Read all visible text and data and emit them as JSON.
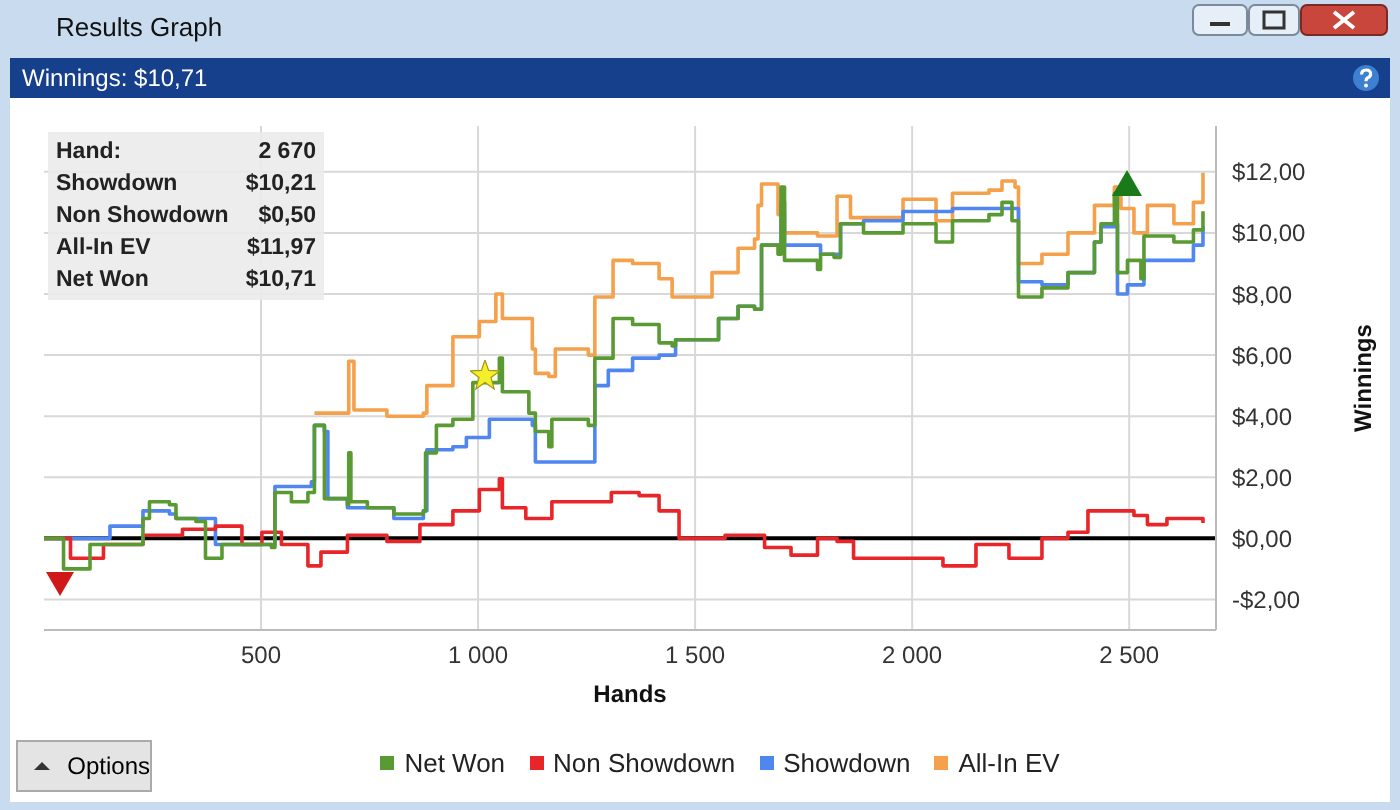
{
  "chart_data": {
    "type": "step",
    "title": "Results Graph",
    "subtitle": "Winnings: $10,71",
    "xlabel": "Hands",
    "ylabel": "Winnings",
    "annotations": [
      "Hand:",
      "2 670",
      "Showdown",
      "$10,21",
      "Non Showdown",
      "$0,50",
      "All-In EV",
      "$11,97",
      "Net Won",
      "$10,71",
      "Options"
    ],
    "xlim": [
      0,
      2700
    ],
    "xticks": [
      500,
      {
        "value": 1000,
        "label": "1 000"
      },
      {
        "value": 1500,
        "label": "1 500"
      },
      {
        "value": 2000,
        "label": "2 000"
      },
      {
        "value": 2500,
        "label": "2 500"
      }
    ],
    "ylim": [
      -3,
      13.5
    ],
    "yticks": [
      {
        "value": -2,
        "label": "-$2,00"
      },
      {
        "value": 0,
        "label": "$0,00"
      },
      {
        "value": 2,
        "label": "$2,00"
      },
      {
        "value": 4,
        "label": "$4,00"
      },
      {
        "value": 6,
        "label": "$6,00"
      },
      {
        "value": 8,
        "label": "$8,00"
      },
      {
        "value": 10,
        "label": "$10,00"
      },
      {
        "value": 12,
        "label": "$12,00"
      }
    ],
    "grid": true,
    "legend": "bottom",
    "ref_lines": [
      {
        "axis": "y",
        "value": 0,
        "color": "#000000"
      }
    ],
    "series": [
      {
        "name": "Net Won",
        "color": "#5a9a32",
        "x": [
          0,
          15,
          45,
          106,
          228,
          243,
          289,
          304,
          350,
          372,
          410,
          456,
          524,
          532,
          570,
          608,
          623,
          646,
          699,
          702,
          707,
          745,
          806,
          874,
          879,
          904,
          942,
          988,
          1049,
          1056,
          1117,
          1132,
          1163,
          1170,
          1254,
          1269,
          1311,
          1356,
          1417,
          1447,
          1455,
          1539,
          1554,
          1599,
          1637,
          1653,
          1691,
          1698,
          1706,
          1767,
          1782,
          1789,
          1820,
          1835,
          1888,
          1979,
          2055,
          2093,
          2177,
          2207,
          2230,
          2245,
          2299,
          2359,
          2420,
          2435,
          2466,
          2473,
          2496,
          2527,
          2534,
          2603,
          2648,
          2670
        ],
        "values": [
          0,
          0,
          -1,
          -0.2,
          0.65,
          1.2,
          1.1,
          0.65,
          0.55,
          -0.65,
          -0.2,
          -0.2,
          -0.3,
          1.5,
          1.2,
          1.5,
          3.7,
          1.3,
          1.1,
          2.8,
          1.2,
          1,
          0.8,
          0.9,
          2.8,
          3.7,
          3.9,
          5.1,
          5.9,
          4.8,
          4.1,
          3.5,
          3,
          3.9,
          3.7,
          5.9,
          7.2,
          7,
          6.4,
          6.3,
          6.5,
          6.5,
          7.2,
          7.6,
          7.5,
          9.6,
          9.3,
          11.5,
          9.1,
          9.1,
          8.8,
          9.3,
          9.2,
          10.3,
          10,
          10.3,
          9.7,
          10.4,
          10.6,
          11,
          10.4,
          7.9,
          8.2,
          8.7,
          9.7,
          10.3,
          11.3,
          8.7,
          9.1,
          8.5,
          9.9,
          9.7,
          10.1,
          10.71
        ]
      },
      {
        "name": "Non Showdown",
        "color": "#e8262a",
        "x": [
          0,
          61,
          137,
          228,
          319,
          395,
          456,
          502,
          547,
          608,
          638,
          699,
          790,
          866,
          942,
          1003,
          1049,
          1056,
          1110,
          1170,
          1246,
          1307,
          1371,
          1417,
          1463,
          1569,
          1660,
          1721,
          1782,
          1827,
          1865,
          1949,
          2071,
          2147,
          2223,
          2299,
          2359,
          2405,
          2511,
          2542,
          2587,
          2670
        ],
        "values": [
          0,
          -0.65,
          -0.2,
          0.1,
          0.3,
          0.4,
          -0.2,
          0.2,
          -0.2,
          -0.9,
          -0.45,
          0.1,
          -0.1,
          0.45,
          0.9,
          1.6,
          1.95,
          1,
          0.65,
          1.2,
          1.2,
          1.5,
          1.4,
          0.9,
          0,
          0.1,
          -0.3,
          -0.55,
          0,
          -0.1,
          -0.65,
          -0.65,
          -0.9,
          -0.2,
          -0.65,
          0,
          0.2,
          0.9,
          0.75,
          0.45,
          0.65,
          0.5
        ]
      },
      {
        "name": "Showdown",
        "color": "#4f86f0",
        "x": [
          0,
          106,
          152,
          228,
          289,
          304,
          395,
          524,
          532,
          616,
          623,
          646,
          654,
          699,
          806,
          874,
          882,
          942,
          973,
          1026,
          1087,
          1125,
          1132,
          1262,
          1269,
          1300,
          1356,
          1417,
          1455,
          1539,
          1554,
          1599,
          1637,
          1653,
          1698,
          1706,
          1767,
          1789,
          1835,
          1888,
          1979,
          2093,
          2230,
          2245,
          2299,
          2359,
          2420,
          2435,
          2466,
          2473,
          2496,
          2534,
          2603,
          2648,
          2670
        ],
        "values": [
          0,
          0,
          0.4,
          0.9,
          0.8,
          0.65,
          -0.2,
          -0.2,
          1.7,
          1.85,
          3.7,
          3.5,
          1.3,
          1,
          0.65,
          0.9,
          2.9,
          3,
          3.3,
          3.9,
          3.9,
          3.7,
          2.5,
          2.5,
          5,
          5.5,
          5.9,
          6,
          6.5,
          6.5,
          7.2,
          7.6,
          7.5,
          9.6,
          11,
          9.6,
          9.6,
          9.3,
          10.3,
          10.4,
          10.7,
          10.8,
          10.8,
          8.4,
          8.3,
          8.7,
          9.7,
          10.2,
          10.3,
          8,
          8.3,
          9.1,
          9.1,
          9.6,
          10.21
        ]
      },
      {
        "name": "All-In EV",
        "color": "#f5a04a",
        "x": [
          623,
          646,
          702,
          714,
          790,
          874,
          882,
          942,
          1003,
          1041,
          1056,
          1125,
          1132,
          1163,
          1178,
          1254,
          1269,
          1311,
          1356,
          1417,
          1447,
          1539,
          1599,
          1637,
          1645,
          1653,
          1691,
          1706,
          1782,
          1827,
          1858,
          1979,
          2055,
          2093,
          2177,
          2207,
          2237,
          2245,
          2299,
          2359,
          2420,
          2466,
          2481,
          2511,
          2542,
          2603,
          2648,
          2670
        ],
        "values": [
          4.1,
          4.1,
          5.8,
          4.2,
          4,
          4.1,
          5,
          6.6,
          7.1,
          8,
          7.2,
          6.2,
          5.4,
          5.3,
          6.2,
          6,
          7.9,
          9.1,
          9,
          8.5,
          7.9,
          8.7,
          9.5,
          9.8,
          10.9,
          11.6,
          10.6,
          10,
          9.9,
          11.2,
          10.5,
          11.1,
          10.4,
          11.3,
          11.4,
          11.7,
          11.5,
          9,
          9.3,
          10,
          10.9,
          11.5,
          10.8,
          10,
          10.9,
          10.3,
          11,
          11.97
        ]
      }
    ]
  }
}
